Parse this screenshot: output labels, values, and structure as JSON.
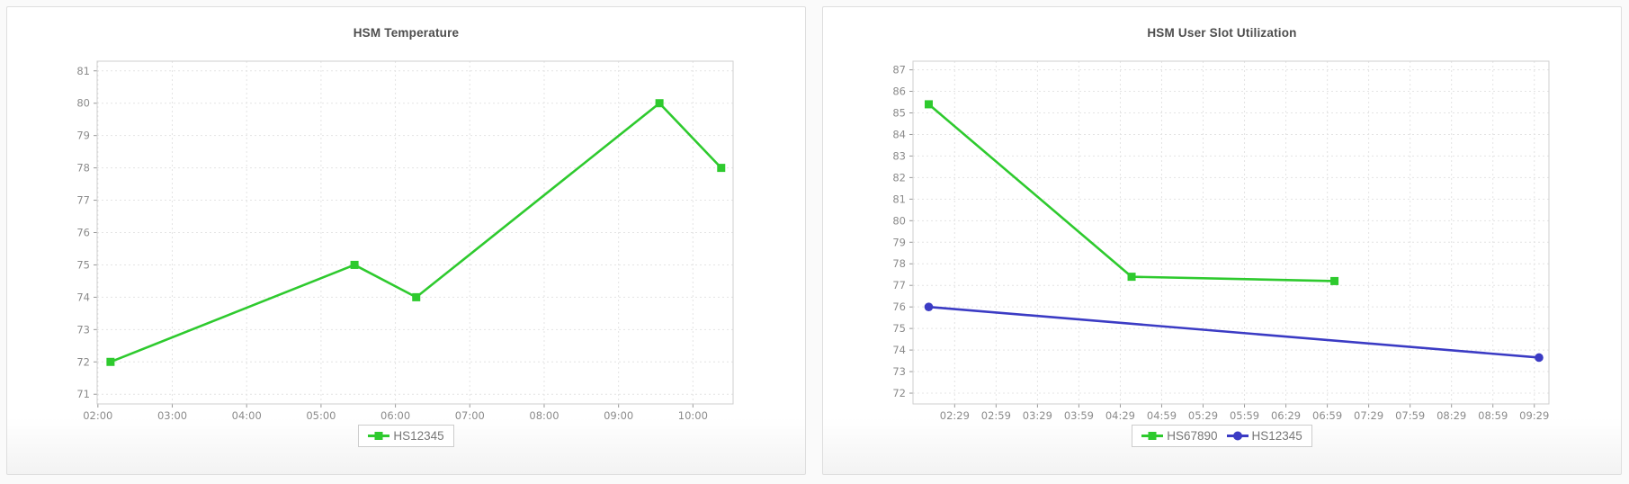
{
  "styles": {
    "grid_color": "#e4e4e4",
    "plot_border_color": "#cfcfcf",
    "tick_mark_color": "#999999",
    "green": "#2eca2e",
    "blue": "#3b3bc4"
  },
  "chart_data": [
    {
      "type": "line",
      "title": "HSM Temperature",
      "xlabel": "",
      "ylabel": "",
      "grid": true,
      "legend_position": "bottom",
      "x_domain": [
        1.99,
        10.54
      ],
      "y_domain": [
        70.7,
        81.3
      ],
      "y_ticks": {
        "min": 71,
        "max": 81,
        "step": 1
      },
      "x_ticks": [
        {
          "v": 2,
          "label": "02:00"
        },
        {
          "v": 3,
          "label": "03:00"
        },
        {
          "v": 4,
          "label": "04:00"
        },
        {
          "v": 5,
          "label": "05:00"
        },
        {
          "v": 6,
          "label": "06:00"
        },
        {
          "v": 7,
          "label": "07:00"
        },
        {
          "v": 8,
          "label": "08:00"
        },
        {
          "v": 9,
          "label": "09:00"
        },
        {
          "v": 10,
          "label": "10:00"
        }
      ],
      "series": [
        {
          "name": "HS12345",
          "color": "#2eca2e",
          "marker": "square",
          "points": [
            {
              "x": 2.17,
              "y": 72
            },
            {
              "x": 5.45,
              "y": 75
            },
            {
              "x": 6.28,
              "y": 74
            },
            {
              "x": 9.55,
              "y": 80
            },
            {
              "x": 10.38,
              "y": 78
            }
          ]
        }
      ]
    },
    {
      "type": "line",
      "title": "HSM User Slot Utilization",
      "xlabel": "",
      "ylabel": "",
      "grid": true,
      "legend_position": "bottom",
      "x_domain": [
        1.98,
        9.66
      ],
      "y_domain": [
        71.5,
        87.4
      ],
      "y_ticks": {
        "min": 72,
        "max": 87,
        "step": 1
      },
      "x_ticks": [
        {
          "v": 2.4833,
          "label": "02:29"
        },
        {
          "v": 2.9833,
          "label": "02:59"
        },
        {
          "v": 3.4833,
          "label": "03:29"
        },
        {
          "v": 3.9833,
          "label": "03:59"
        },
        {
          "v": 4.4833,
          "label": "04:29"
        },
        {
          "v": 4.9833,
          "label": "04:59"
        },
        {
          "v": 5.4833,
          "label": "05:29"
        },
        {
          "v": 5.9833,
          "label": "05:59"
        },
        {
          "v": 6.4833,
          "label": "06:29"
        },
        {
          "v": 6.9833,
          "label": "06:59"
        },
        {
          "v": 7.4833,
          "label": "07:29"
        },
        {
          "v": 7.9833,
          "label": "07:59"
        },
        {
          "v": 8.4833,
          "label": "08:29"
        },
        {
          "v": 8.9833,
          "label": "08:59"
        },
        {
          "v": 9.4833,
          "label": "09:29"
        }
      ],
      "series": [
        {
          "name": "HS67890",
          "color": "#2eca2e",
          "marker": "square",
          "points": [
            {
              "x": 2.17,
              "y": 85.4
            },
            {
              "x": 4.62,
              "y": 77.4
            },
            {
              "x": 7.07,
              "y": 77.2
            }
          ]
        },
        {
          "name": "HS12345",
          "color": "#3b3bc4",
          "marker": "circle",
          "points": [
            {
              "x": 2.17,
              "y": 76.0
            },
            {
              "x": 9.54,
              "y": 73.65
            }
          ]
        }
      ]
    }
  ]
}
